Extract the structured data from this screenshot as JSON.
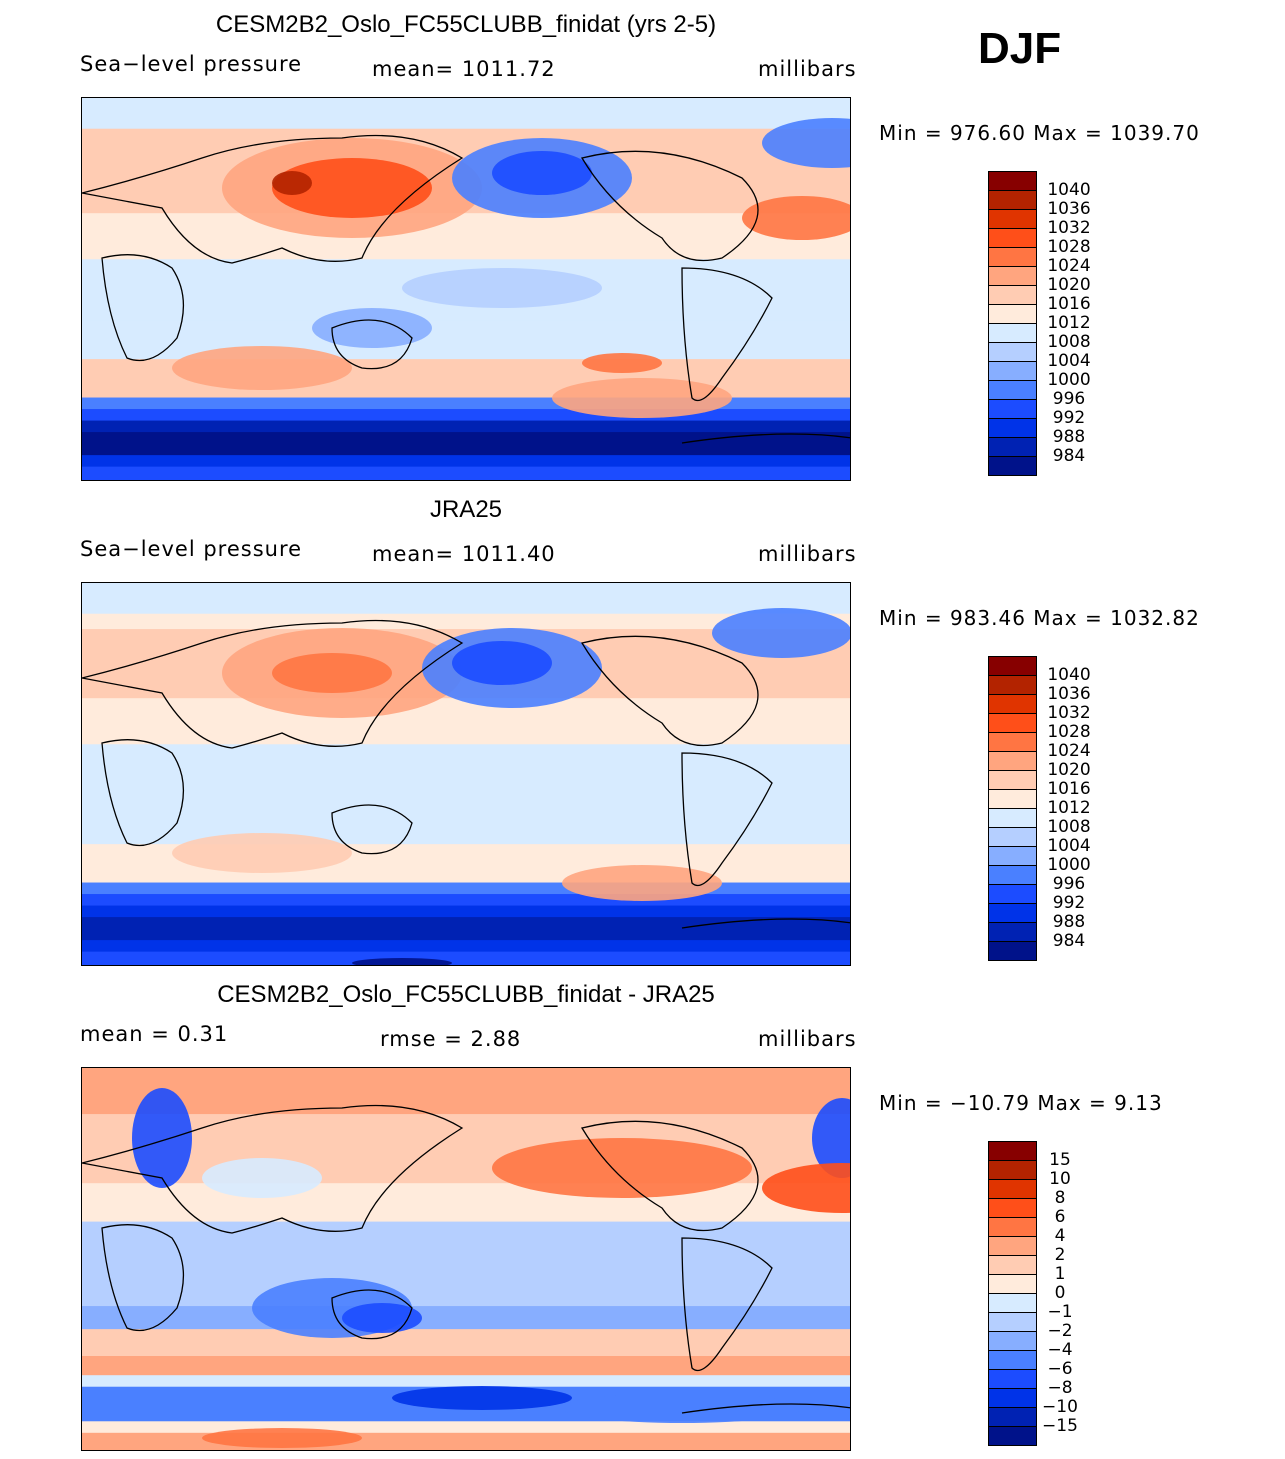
{
  "season": "DJF",
  "colors": [
    "#870000",
    "#b32300",
    "#e03400",
    "#ff4f19",
    "#ff7543",
    "#ffa57f",
    "#ffccb3",
    "#ffebdc",
    "#d7ebff",
    "#b5cfff",
    "#87aeff",
    "#4a80ff",
    "#1c4cff",
    "#0033e8",
    "#0022b3",
    "#00128a"
  ],
  "panels": [
    {
      "title": "CESM2B2_Oslo_FC55CLUBB_finidat (yrs 2-5)",
      "left": "Sea−level  pressure",
      "middle": "mean=  1011.72",
      "units": "millibars",
      "minmax": "Min  =  976.60  Max  =  1039.70",
      "levels": [
        "1040",
        "1036",
        "1032",
        "1028",
        "1024",
        "1020",
        "1016",
        "1012",
        "1008",
        "1004",
        "1000",
        "996",
        "992",
        "988",
        "984"
      ]
    },
    {
      "title": "JRA25",
      "left": "Sea−level  pressure",
      "middle": "mean=  1011.40",
      "units": "millibars",
      "minmax": "Min  =  983.46  Max  =  1032.82",
      "levels": [
        "1040",
        "1036",
        "1032",
        "1028",
        "1024",
        "1020",
        "1016",
        "1012",
        "1008",
        "1004",
        "1000",
        "996",
        "992",
        "988",
        "984"
      ]
    },
    {
      "title": "CESM2B2_Oslo_FC55CLUBB_finidat - JRA25",
      "left": "mean  =     0.31",
      "middle": "rmse  =     2.88",
      "units": "millibars",
      "minmax": "Min  =  −10.79  Max  =      9.13",
      "levels": [
        "15",
        "10",
        "8",
        "6",
        "4",
        "2",
        "1",
        "0",
        "−1",
        "−2",
        "−4",
        "−6",
        "−8",
        "−10",
        "−15"
      ]
    }
  ]
}
